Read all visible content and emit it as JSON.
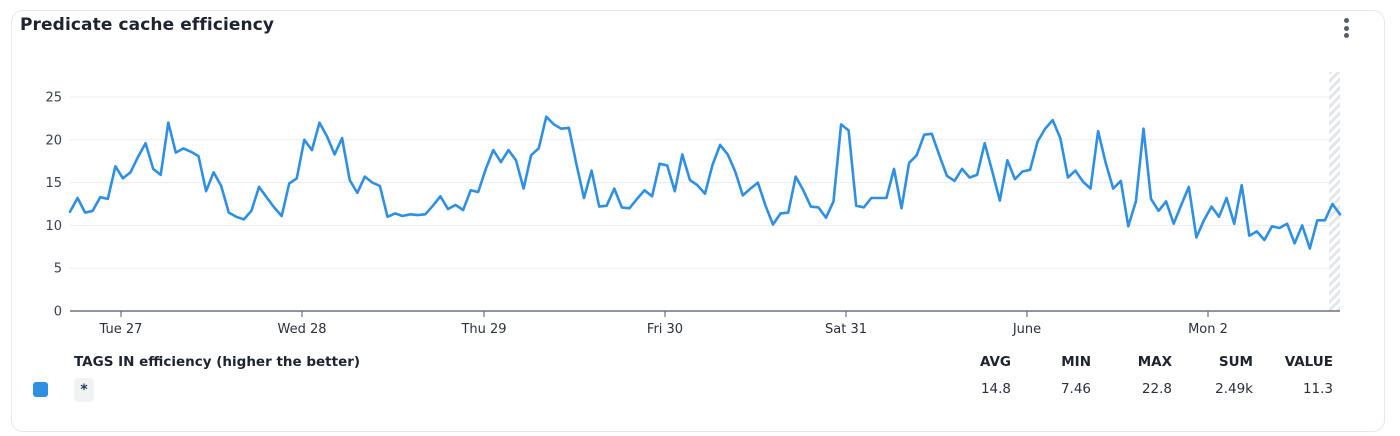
{
  "widget": {
    "title": "Predicate cache efficiency",
    "menu_icon": "more-vertical-icon"
  },
  "legend": {
    "header": "TAGS IN efficiency (higher the better)",
    "series_tag": "*",
    "swatch_color": "#2f8fe3",
    "columns": [
      "AVG",
      "MIN",
      "MAX",
      "SUM",
      "VALUE"
    ],
    "values": [
      "14.8",
      "7.46",
      "22.8",
      "2.49k",
      "11.3"
    ]
  },
  "chart_data": {
    "type": "line",
    "title": "Predicate cache efficiency",
    "xlabel": "",
    "ylabel": "",
    "ylim": [
      0,
      25
    ],
    "yticks": [
      0,
      5,
      10,
      15,
      20,
      25
    ],
    "grid": true,
    "legend_position": "bottom",
    "x_tick_labels": [
      "Tue 27",
      "Wed 28",
      "Thu 29",
      "Fri 30",
      "Sat 31",
      "June",
      "Mon 2"
    ],
    "x_tick_positions": [
      121,
      302,
      484,
      665,
      846,
      1027,
      1208
    ],
    "series": [
      {
        "name": "*",
        "color": "#2f8fe3",
        "values": [
          11.6,
          13.2,
          11.5,
          11.7,
          13.3,
          13.1,
          16.9,
          15.5,
          16.2,
          18.0,
          19.6,
          16.6,
          15.9,
          22.0,
          18.5,
          19.0,
          18.6,
          18.1,
          14.0,
          16.2,
          14.6,
          11.5,
          11.0,
          10.7,
          11.7,
          14.5,
          13.3,
          12.1,
          11.1,
          14.9,
          15.5,
          20.0,
          18.8,
          22.0,
          20.4,
          18.3,
          20.2,
          15.3,
          13.8,
          15.7,
          15.0,
          14.6,
          11.0,
          11.4,
          11.1,
          11.3,
          11.2,
          11.3,
          12.3,
          13.4,
          11.9,
          12.4,
          11.8,
          14.1,
          13.9,
          16.6,
          18.8,
          17.4,
          18.8,
          17.6,
          14.3,
          18.2,
          19.0,
          22.7,
          21.8,
          21.3,
          21.4,
          17.1,
          13.2,
          16.4,
          12.2,
          12.3,
          14.3,
          12.1,
          12.0,
          13.1,
          14.1,
          13.4,
          17.2,
          17.0,
          14.0,
          18.3,
          15.3,
          14.7,
          13.7,
          17.1,
          19.4,
          18.3,
          16.3,
          13.5,
          14.3,
          15.0,
          12.3,
          10.1,
          11.4,
          11.5,
          15.7,
          14.1,
          12.2,
          12.1,
          10.9,
          12.8,
          21.8,
          21.1,
          12.3,
          12.1,
          13.2,
          13.2,
          13.2,
          16.6,
          12.0,
          17.3,
          18.2,
          20.6,
          20.7,
          18.2,
          15.8,
          15.2,
          16.6,
          15.6,
          15.9,
          19.6,
          16.3,
          12.9,
          17.6,
          15.4,
          16.3,
          16.5,
          19.8,
          21.3,
          22.3,
          20.2,
          15.6,
          16.4,
          15.1,
          14.3,
          21.0,
          17.3,
          14.3,
          15.2,
          9.9,
          12.8,
          21.3,
          13.1,
          11.7,
          12.8,
          10.2,
          12.4,
          14.5,
          8.6,
          10.6,
          12.2,
          11.0,
          13.2,
          10.2,
          14.7,
          8.8,
          9.3,
          8.3,
          9.9,
          9.7,
          10.2,
          7.9,
          10.0,
          7.3,
          10.6,
          10.6,
          12.5,
          11.3
        ]
      }
    ],
    "stats": {
      "avg": 14.8,
      "min": 7.46,
      "max": 22.8,
      "sum": "2.49k",
      "value": 11.3
    }
  }
}
